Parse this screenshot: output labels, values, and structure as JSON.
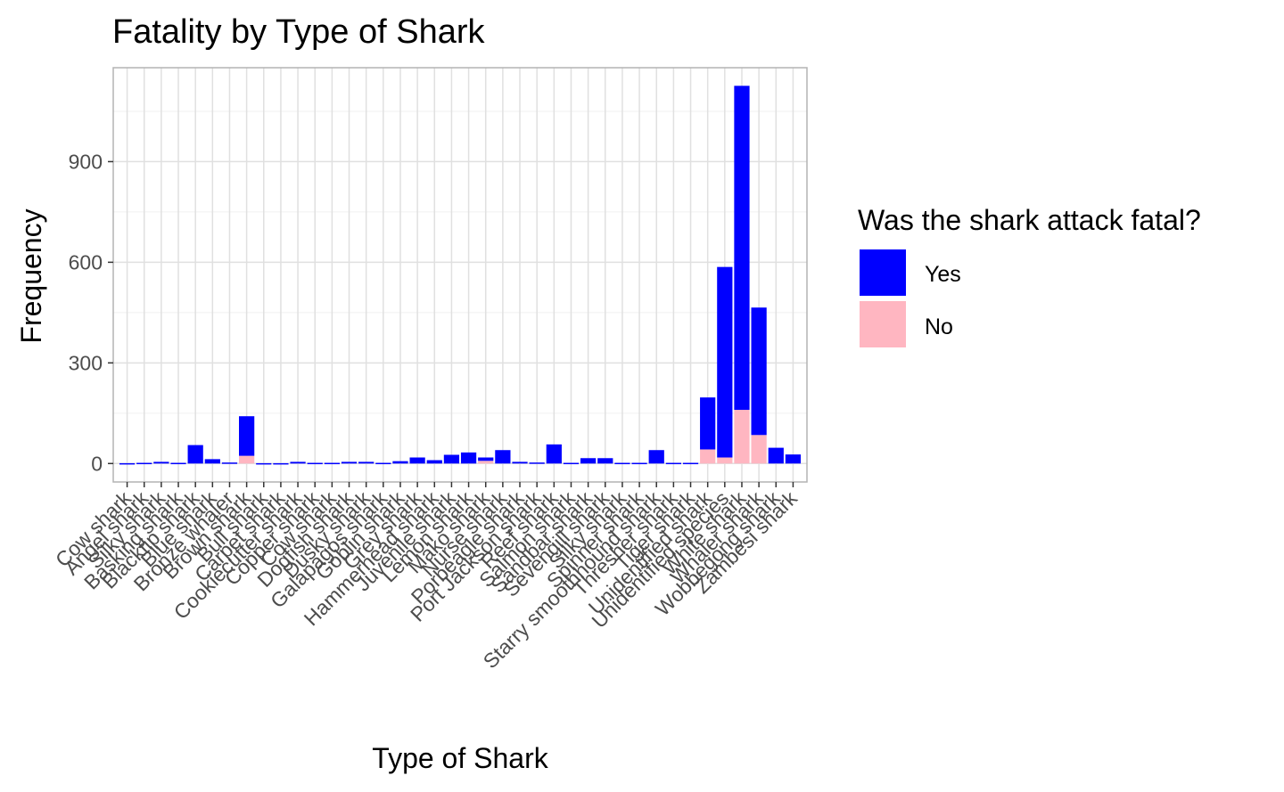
{
  "chart_data": {
    "type": "bar",
    "stacked": true,
    "title": "Fatality by Type of Shark",
    "xlabel": "Type of Shark",
    "ylabel": "Frequency",
    "ylim": [
      -55,
      1180
    ],
    "yticks": [
      0,
      300,
      600,
      900
    ],
    "grid": true,
    "legend": {
      "title": "Was the shark attack fatal?",
      "position": "right"
    },
    "colors": {
      "Yes": "#0000ff",
      "No": "#ffb6c1"
    },
    "categories": [
      "Cow shark",
      "Angel shark",
      "Silky shark",
      "Basking shark",
      "Blacktip shark",
      "Blue shark",
      "Bronze whaler",
      "Brown shark",
      "Bull shark",
      "Carpet shark",
      "Cookiecutter shark",
      "Copper shark",
      "Cow shark",
      "Dogfish shark",
      "Dusky shark",
      "Galapagos shark",
      "Goblin shark",
      "Grey shark",
      "Hammerhead shark",
      "Juvenile shark",
      "Lemon shark",
      "Mako shark",
      "Nurse shark",
      "Porbeagle shark",
      "Port Jackson shark",
      "Reef shark",
      "Salmon shark",
      "Sandbar shark",
      "Sevengill shark",
      "Silky shark",
      "Spinner shark",
      "Starry smoothhound shark",
      "Thresher shark",
      "Tiger shark",
      "Unidentified shark",
      "Unidentified species",
      "White shark",
      "Whaler shark",
      "Wobbegong shark",
      "Zambesi shark"
    ],
    "series": [
      {
        "name": "Yes",
        "values": [
          1,
          2,
          5,
          2,
          55,
          13,
          3,
          118,
          1,
          1,
          5,
          2,
          2,
          5,
          5,
          2,
          7,
          18,
          10,
          26,
          33,
          10,
          40,
          5,
          3,
          57,
          2,
          16,
          16,
          2,
          2,
          40,
          2,
          2,
          155,
          568,
          966,
          380,
          47,
          27
        ]
      },
      {
        "name": "No",
        "values": [
          0,
          0,
          0,
          0,
          0,
          0,
          0,
          23,
          0,
          0,
          0,
          0,
          0,
          0,
          0,
          0,
          0,
          0,
          0,
          0,
          0,
          8,
          0,
          0,
          0,
          0,
          0,
          0,
          0,
          0,
          0,
          0,
          0,
          0,
          42,
          18,
          160,
          85,
          0,
          0
        ]
      }
    ],
    "extra_last_bar": {
      "Yes": 17,
      "No": 0
    }
  }
}
